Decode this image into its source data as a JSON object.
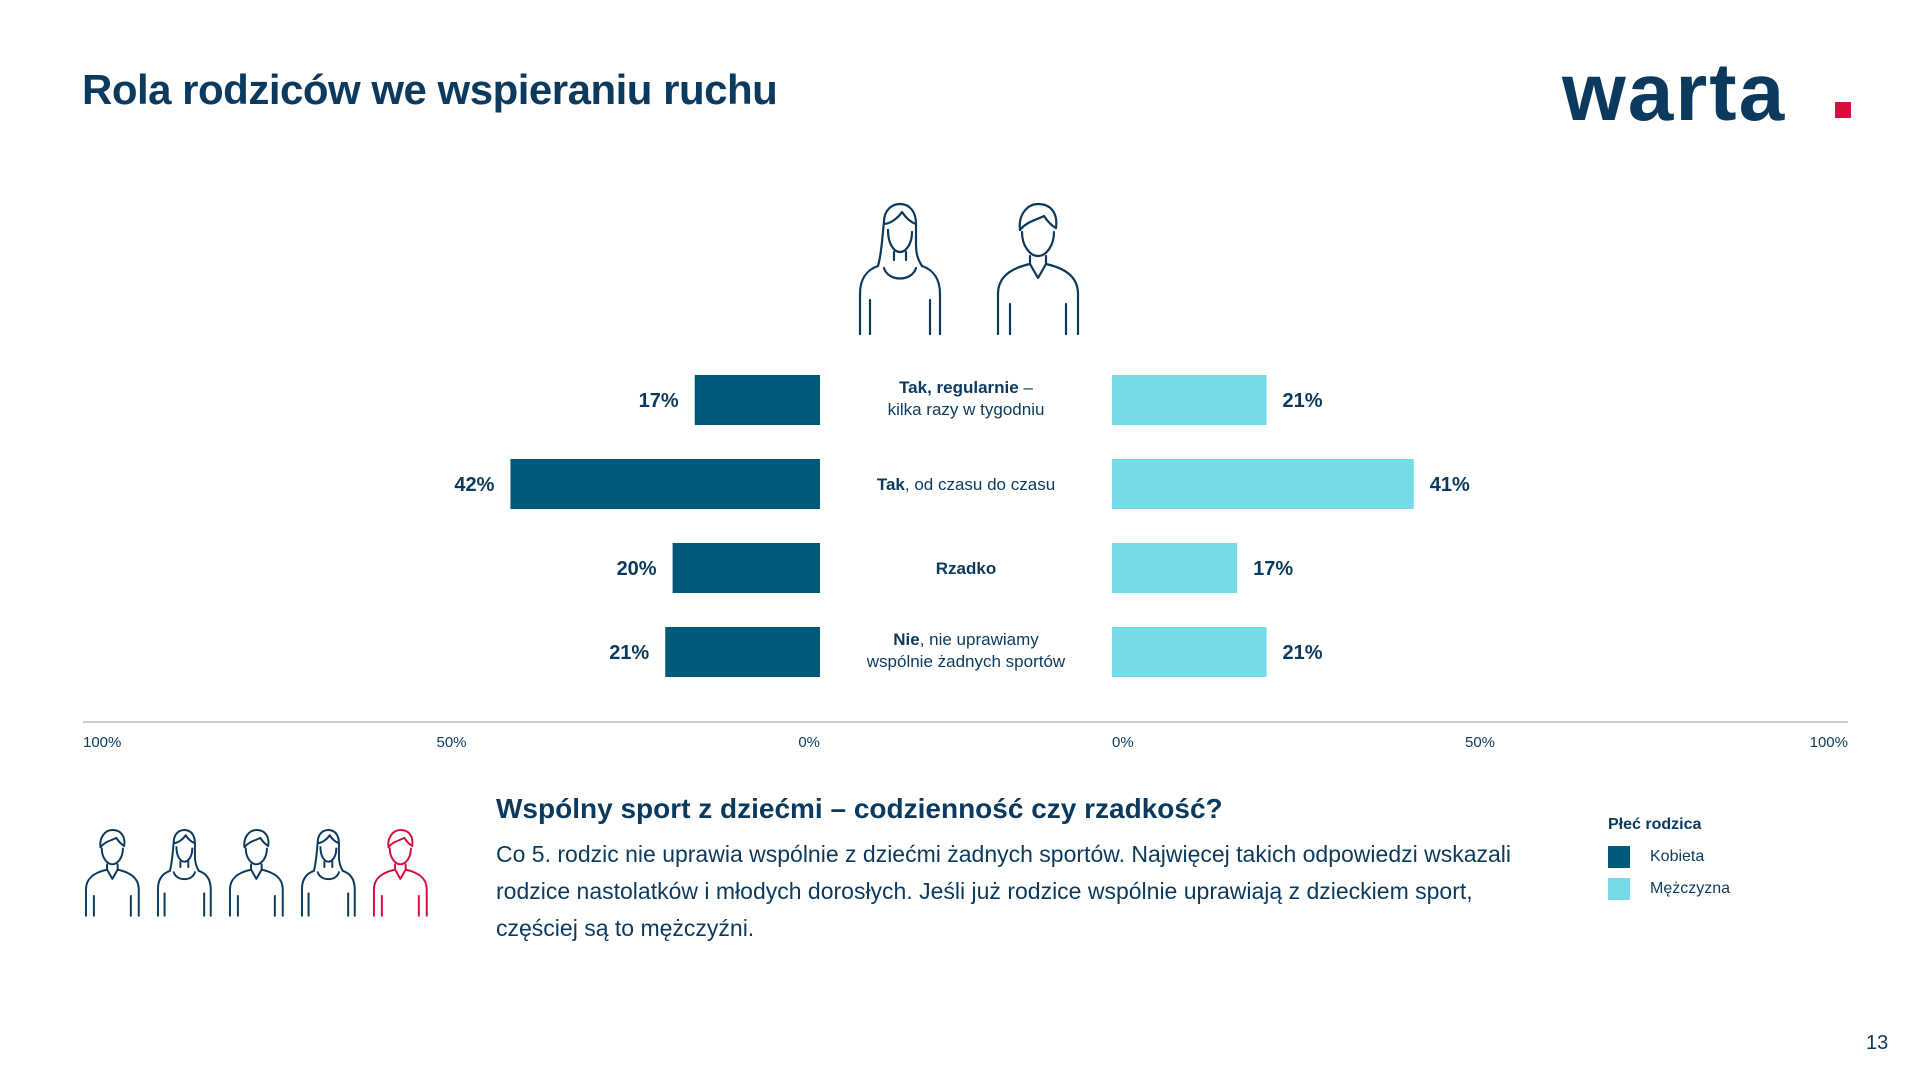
{
  "page_title": "Rola rodziców we wspieraniu ruchu",
  "logo_text": "warta",
  "colors": {
    "navy": "#0b3a5e",
    "kobieta": "#025a7b",
    "mezczyzna": "#76dbe8",
    "accent": "#d40f3d"
  },
  "icons": {
    "top": [
      "woman-icon",
      "man-icon"
    ],
    "bottom": [
      "man-icon",
      "woman-icon",
      "man-icon",
      "woman-icon",
      "man-icon-highlighted"
    ]
  },
  "chart_data": {
    "type": "bar",
    "orientation": "horizontal-diverging",
    "categories": [
      {
        "bold": "Tak, regularnie",
        "rest": " –",
        "line2": "kilka razy w tygodniu"
      },
      {
        "bold": "Tak",
        "rest": ", od czasu do czasu",
        "line2": ""
      },
      {
        "bold": "Rzadko",
        "rest": "",
        "line2": ""
      },
      {
        "bold": "Nie",
        "rest": ", nie uprawiamy",
        "line2": "wspólnie żadnych sportów"
      }
    ],
    "series": [
      {
        "name": "Kobieta",
        "values": [
          17,
          42,
          20,
          21
        ],
        "labels": [
          "17%",
          "42%",
          "20%",
          "21%"
        ]
      },
      {
        "name": "Mężczyzna",
        "values": [
          21,
          41,
          17,
          21
        ],
        "labels": [
          "21%",
          "41%",
          "17%",
          "21%"
        ]
      }
    ],
    "xlim": [
      0,
      100
    ],
    "left_axis_ticks": [
      "100%",
      "50%",
      "0%"
    ],
    "right_axis_ticks": [
      "0%",
      "50%",
      "100%"
    ]
  },
  "insight": {
    "heading": "Wspólny sport z dziećmi – codzienność czy rzadkość?",
    "body": "Co 5. rodzic nie uprawia wspólnie z dziećmi żadnych sportów. Najwięcej takich odpowiedzi wskazali rodzice nastolatków i młodych dorosłych. Jeśli już rodzice wspólnie uprawiają z dzieckiem sport, częściej są to mężczyźni."
  },
  "legend": {
    "title": "Płeć rodzica",
    "items": [
      {
        "label": "Kobieta",
        "color": "#025a7b"
      },
      {
        "label": "Mężczyzna",
        "color": "#76dbe8"
      }
    ]
  },
  "page_number": "13"
}
